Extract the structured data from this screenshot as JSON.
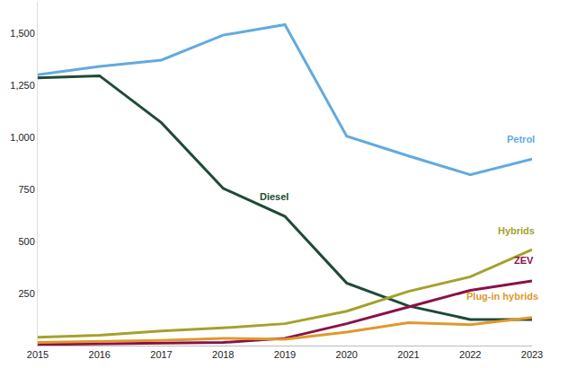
{
  "chart_data": {
    "type": "line",
    "x": [
      2015,
      2016,
      2017,
      2018,
      2019,
      2020,
      2021,
      2022,
      2023
    ],
    "xlim": [
      2015,
      2023
    ],
    "xticks": [
      2015,
      2016,
      2017,
      2018,
      2019,
      2020,
      2021,
      2022,
      2023
    ],
    "ylim": [
      0,
      1650
    ],
    "yticks": [
      250,
      500,
      750,
      {
        "value": 1000,
        "label": "1,000"
      },
      {
        "value": 1250,
        "label": "1,250"
      },
      {
        "value": 1500,
        "label": "1,500"
      }
    ],
    "grid": false,
    "series": [
      {
        "name": "Petrol",
        "color": "#62aadf",
        "values": [
          1300,
          1340,
          1370,
          1490,
          1540,
          1005,
          910,
          820,
          895
        ]
      },
      {
        "name": "Diesel",
        "color": "#1f4a36",
        "values": [
          1285,
          1295,
          1070,
          755,
          620,
          300,
          190,
          125,
          125
        ]
      },
      {
        "name": "Hybrids",
        "color": "#a5a12a",
        "values": [
          40,
          50,
          70,
          85,
          105,
          165,
          260,
          330,
          460
        ]
      },
      {
        "name": "ZEV",
        "color": "#8a1148",
        "values": [
          5,
          8,
          10,
          15,
          35,
          105,
          185,
          265,
          310
        ]
      },
      {
        "name": "Plug-in hybrids",
        "color": "#e0982c",
        "values": [
          15,
          20,
          25,
          35,
          30,
          65,
          110,
          100,
          135
        ]
      }
    ]
  }
}
